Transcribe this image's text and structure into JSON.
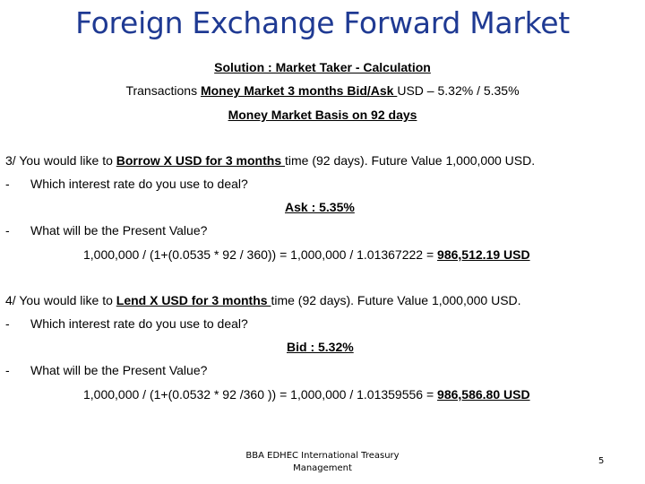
{
  "title": "Foreign Exchange Forward Market",
  "subtitle": "Solution : Market Taker - Calculation",
  "transactions": {
    "prefix": "Transactions ",
    "underlined": "Money Market 3 months Bid/Ask ",
    "suffix": "USD – 5.32% / 5.35%"
  },
  "basis": "Money Market Basis on 92 days",
  "q3": {
    "prefix": "3/ You would like to ",
    "underlined": "Borrow X USD for 3 months ",
    "suffix": "time (92 days). Future Value 1,000,000 USD.",
    "dash": "-",
    "rate_question": "Which interest rate do you use to deal?",
    "rate_answer": "Ask : 5.35%",
    "pv_question": "What will be the Present Value?",
    "calc_prefix": "1,000,000 / (1+(0.0535 * 92 / 360)) = 1,000,000 / 1.01367222 = ",
    "calc_result": "986,512.19 USD"
  },
  "q4": {
    "prefix": "4/ You would like to ",
    "underlined": "Lend X USD for 3 months ",
    "suffix": "time (92 days). Future Value 1,000,000 USD.",
    "dash": "-",
    "rate_question": "Which interest rate do you use to deal?",
    "rate_answer": "Bid : 5.32%",
    "pv_question": "What will be the Present Value?",
    "calc_prefix": "1,000,000 / (1+(0.0532 * 92 /360 )) = 1,000,000 / 1.01359556 = ",
    "calc_result": "986,586.80 USD"
  },
  "footer": {
    "line1": "BBA EDHEC International Treasury",
    "line2": "Management"
  },
  "page_number": "5"
}
